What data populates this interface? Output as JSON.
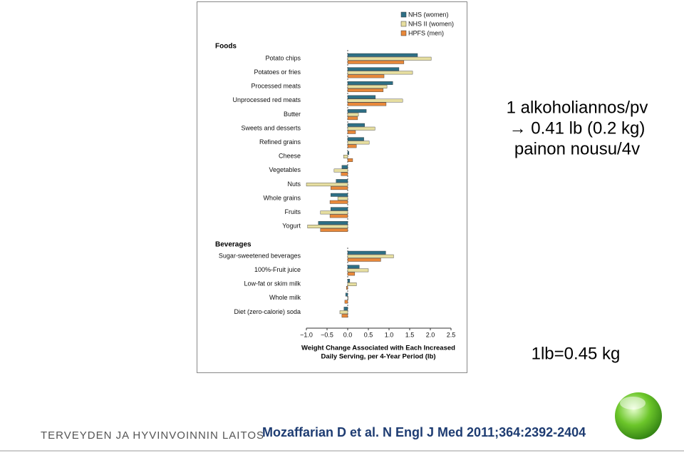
{
  "chart_data": [
    {
      "type": "hbar",
      "title": "Foods",
      "categories": [
        "Potato chips",
        "Potatoes or fries",
        "Processed meats",
        "Unprocessed red meats",
        "Butter",
        "Sweets and desserts",
        "Refined grains",
        "Cheese",
        "Vegetables",
        "Nuts",
        "Whole grains",
        "Fruits",
        "Yogurt"
      ],
      "series": [
        {
          "name": "NHS (women)",
          "color": "#2e6f85",
          "values": [
            1.69,
            1.24,
            1.09,
            0.67,
            0.45,
            0.41,
            0.39,
            0.03,
            -0.14,
            -0.28,
            -0.41,
            -0.41,
            -0.71
          ]
        },
        {
          "name": "NHS II (women)",
          "color": "#e6dea0",
          "values": [
            2.02,
            1.57,
            0.95,
            1.33,
            0.26,
            0.66,
            0.52,
            -0.1,
            -0.33,
            -1.0,
            -0.24,
            -0.66,
            -0.97
          ]
        },
        {
          "name": "HPFS (men)",
          "color": "#e8883a",
          "values": [
            1.36,
            0.88,
            0.86,
            0.93,
            0.24,
            0.19,
            0.21,
            0.12,
            -0.16,
            -0.41,
            -0.43,
            -0.43,
            -0.66
          ]
        }
      ],
      "xlim": [
        -1.0,
        2.5
      ]
    },
    {
      "type": "hbar",
      "title": "Beverages",
      "categories": [
        "Sugar-sweetened beverages",
        "100%-Fruit juice",
        "Low-fat or skim milk",
        "Whole milk",
        "Diet (zero-calorie) soda"
      ],
      "series": [
        {
          "name": "NHS (women)",
          "color": "#2e6f85",
          "values": [
            0.92,
            0.28,
            0.05,
            -0.05,
            -0.09
          ]
        },
        {
          "name": "NHS II (women)",
          "color": "#e6dea0",
          "values": [
            1.11,
            0.5,
            0.21,
            0.01,
            -0.19
          ]
        },
        {
          "name": "HPFS (men)",
          "color": "#e8883a",
          "values": [
            0.8,
            0.17,
            -0.03,
            -0.07,
            -0.14
          ]
        }
      ],
      "xlim": [
        -1.0,
        2.5
      ],
      "xticks": [
        {
          "value": -1.0,
          "label": "−1.0"
        },
        {
          "value": -0.5,
          "label": "−0.5"
        },
        {
          "value": 0,
          "label": "0.0"
        },
        0.5,
        {
          "value": 1.0,
          "label": "1.0"
        },
        1.5,
        {
          "value": 2.0,
          "label": "2.0"
        },
        2.5
      ],
      "xlabel": [
        "Weight Change Associated with Each Increased",
        "Daily Serving, per 4-Year Period (lb)"
      ]
    }
  ],
  "slide": {
    "note": [
      "1 alkoholiannos/pv",
      "→ 0.41 lb (0.2 kg)",
      "painon nousu/4v"
    ],
    "conversion": "1lb=0.45 kg",
    "organization": "TERVEYDEN JA HYVINVOINNIN LAITOS",
    "citation": "Mozaffarian D et al. N Engl J Med 2011;364:2392-2404"
  }
}
